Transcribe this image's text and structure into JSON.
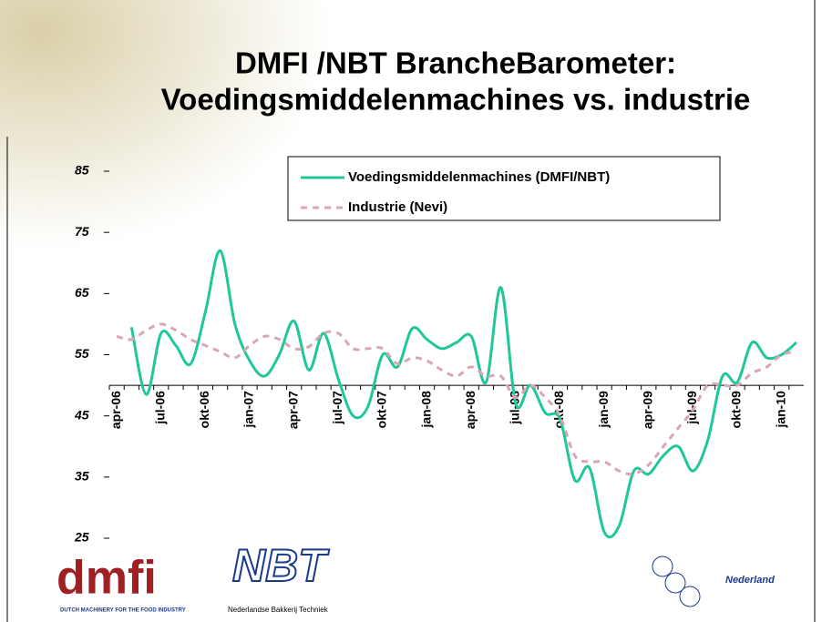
{
  "chart_data": {
    "type": "line",
    "title": "DMFI /NBT BrancheBarometer:",
    "subtitle": "Voedingsmiddelenmachines vs. industrie",
    "categories": [
      "apr-06",
      null,
      null,
      "jul-06",
      null,
      null,
      "okt-06",
      null,
      null,
      "jan-07",
      null,
      null,
      "apr-07",
      null,
      null,
      "jul-07",
      null,
      null,
      "okt-07",
      null,
      null,
      "jan-08",
      null,
      null,
      "apr-08",
      null,
      null,
      "jul-08",
      null,
      null,
      "okt-08",
      null,
      null,
      "jan-09",
      null,
      null,
      "apr-09",
      null,
      null,
      "jul-09",
      null,
      null,
      "okt-09",
      null,
      null,
      "jan-10",
      null
    ],
    "series": [
      {
        "name": "Voedingsmiddelenmachines (DMFI/NBT)",
        "color": "#1fc79a",
        "dash": false,
        "values": [
          null,
          59.5,
          48.5,
          58.5,
          56.5,
          53.5,
          62,
          72,
          60,
          54,
          51.5,
          55,
          60.5,
          52.5,
          58.5,
          51,
          45,
          46.5,
          55,
          53,
          59.3,
          57.5,
          56,
          57,
          58,
          50.5,
          66,
          47,
          50,
          45.5,
          44.5,
          34.5,
          36.5,
          26,
          27,
          36,
          35.5,
          38.5,
          40,
          36,
          41,
          51.5,
          50.5,
          57,
          54.5,
          55,
          57
        ]
      },
      {
        "name": "Industrie (Nevi)",
        "color": "#d9a6b6",
        "dash": true,
        "values": [
          58,
          57.5,
          59,
          60,
          59,
          57.5,
          56.5,
          55.5,
          54.5,
          56.5,
          58,
          57.5,
          56,
          56.3,
          58.5,
          58.5,
          56,
          56,
          56,
          53.5,
          54.5,
          54,
          52.5,
          51.5,
          53,
          51.5,
          51.5,
          48,
          50,
          48,
          45,
          38.5,
          37.5,
          37.5,
          36,
          35.5,
          37,
          40,
          43,
          46,
          50,
          50,
          50,
          52,
          53,
          55,
          55.5
        ]
      }
    ],
    "ylim": [
      25,
      85
    ],
    "yticks": [
      25,
      35,
      45,
      55,
      65,
      75,
      85
    ],
    "x_axis_crosses": 50,
    "grid": false,
    "legend": "top"
  },
  "logos": {
    "dmfi": "dmfi",
    "dmfi_tagline": "DUTCH MACHINERY FOR THE FOOD INDUSTRY",
    "nbt": "NBT",
    "nbt_tagline": "Nederlandse Bakkerij Techniek",
    "mcb_country": "Nederland"
  }
}
